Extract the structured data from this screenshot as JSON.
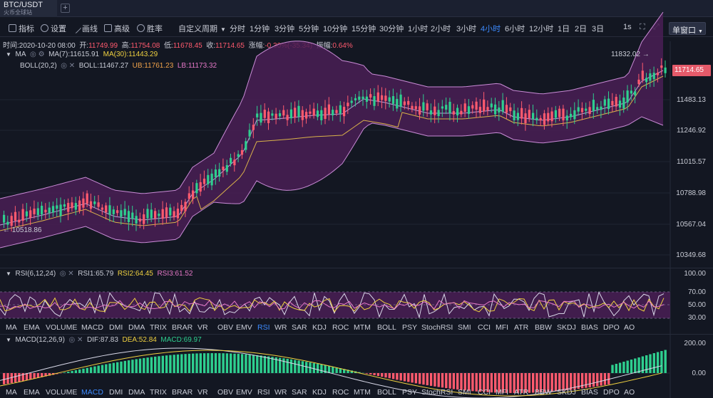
{
  "tab": {
    "symbol": "BTC/USDT",
    "exchange": "火币全球站"
  },
  "toolbar": {
    "tools": [
      {
        "name": "indicator",
        "label": "指标"
      },
      {
        "name": "settings",
        "label": "设置"
      },
      {
        "name": "draw",
        "label": "画线"
      },
      {
        "name": "advanced",
        "label": "高级"
      },
      {
        "name": "winrate",
        "label": "胜率"
      }
    ],
    "custom_period": "自定义周期",
    "periods": [
      "分时",
      "1分钟",
      "3分钟",
      "5分钟",
      "10分钟",
      "15分钟",
      "30分钟",
      "1小时",
      "2小时",
      "3小时",
      "4小时",
      "6小时",
      "12小时",
      "1日",
      "2日",
      "3日"
    ],
    "active_period": "4小时",
    "right_interval": "1s",
    "window_mode": "单窗口"
  },
  "ohlc": {
    "time_label": "时间:",
    "time": "2020-10-20 08:00",
    "open_label": "开:",
    "open": "11749.99",
    "high_label": "高:",
    "high": "11754.08",
    "low_label": "低:",
    "low": "11678.45",
    "close_label": "收:",
    "close": "11714.65",
    "change_label": "涨幅:",
    "change": "-0.30%(-35.34)",
    "amp_label": "振幅:",
    "amp": "0.64%"
  },
  "main_legend": {
    "ma_name": "MA",
    "ma7": "MA(7):11615.91",
    "ma30": "MA(30):11443.29",
    "boll_name": "BOLL(20,2)",
    "boll": "BOLL:11467.27",
    "ub": "UB:11761.23",
    "lb": "LB:11173.32"
  },
  "price_axis": [
    "11483.13",
    "11246.92",
    "11015.57",
    "10788.98",
    "10567.04",
    "10349.68"
  ],
  "current_price": "11714.65",
  "high_marker": "11832.02",
  "low_marker": "10518.86",
  "rsi_legend": {
    "name": "RSI(6,12,24)",
    "rsi1": "RSI1:65.79",
    "rsi2": "RSI2:64.45",
    "rsi3": "RSI3:61.52"
  },
  "rsi_axis": [
    "100.00",
    "70.00",
    "50.00",
    "30.00"
  ],
  "macd_legend": {
    "name": "MACD(12,26,9)",
    "dif": "DIF:87.83",
    "dea": "DEA:52.84",
    "macd": "MACD:69.97"
  },
  "macd_axis": [
    "200.00",
    "0.00"
  ],
  "indicators": [
    "MA",
    "EMA",
    "VOLUME",
    "MACD",
    "DMI",
    "DMA",
    "TRIX",
    "BRAR",
    "VR",
    "OBV",
    "EMV",
    "RSI",
    "WR",
    "SAR",
    "KDJ",
    "ROC",
    "MTM",
    "BOLL",
    "PSY",
    "StochRSI",
    "SMI",
    "CCI",
    "MFI",
    "ATR",
    "BBW",
    "SKDJ",
    "BIAS",
    "DPO",
    "AO"
  ],
  "indicators_row1_active": "RSI",
  "indicators_row2_active": "MACD",
  "colors": {
    "up": "#2ecf8f",
    "down": "#ff5a6e",
    "boll_fill": "#4a1f55",
    "accent": "#3d8bff"
  }
}
